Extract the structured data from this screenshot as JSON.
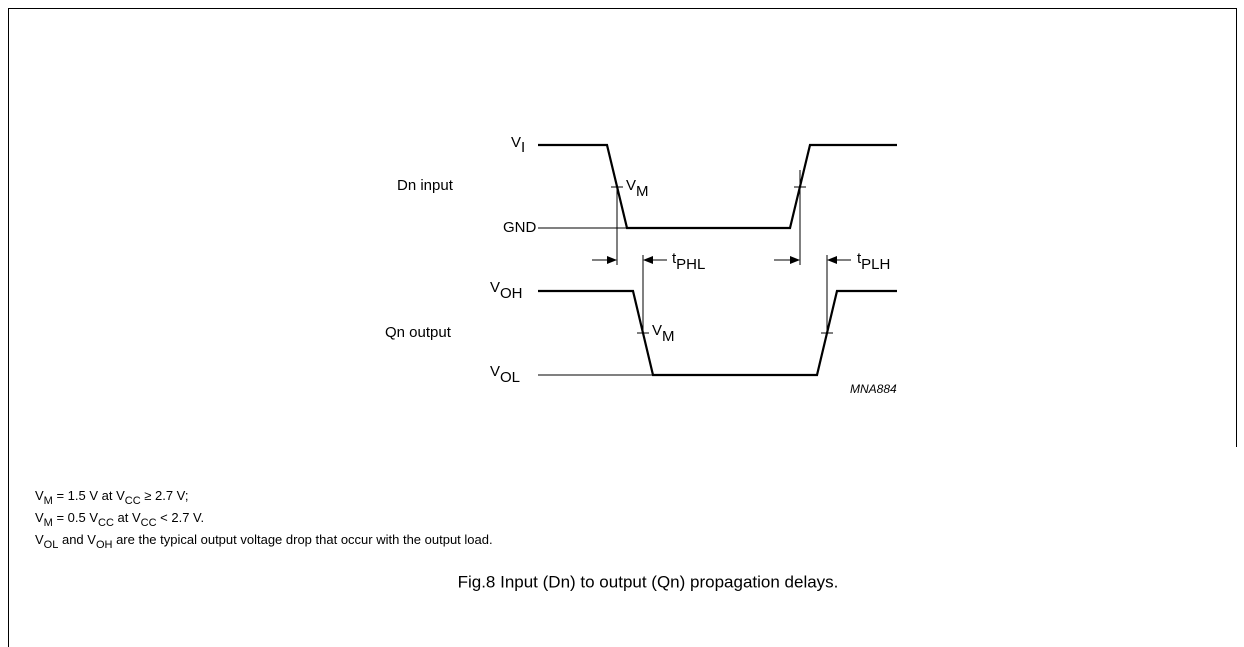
{
  "diagram": {
    "input_label": "Dn input",
    "output_label": "Qn output",
    "vi": {
      "main": "V",
      "sub": "I"
    },
    "gnd": "GND",
    "vm_in": {
      "main": "V",
      "sub": "M"
    },
    "voh": {
      "main": "V",
      "sub": "OH"
    },
    "vol": {
      "main": "V",
      "sub": "OL"
    },
    "vm_out": {
      "main": "V",
      "sub": "M"
    },
    "tphl": {
      "main": "t",
      "sub": "PHL"
    },
    "tplh": {
      "main": "t",
      "sub": "PLH"
    },
    "code": "MNA884"
  },
  "notes": [
    [
      {
        "text": "V"
      },
      {
        "sub": "M"
      },
      {
        "text": " = 1.5 V at V"
      },
      {
        "sub": "CC"
      },
      {
        "text": " ≥ 2.7 V;"
      }
    ],
    [
      {
        "text": "V"
      },
      {
        "sub": "M"
      },
      {
        "text": " = 0.5 V"
      },
      {
        "sub": "CC"
      },
      {
        "text": " at V"
      },
      {
        "sub": "CC"
      },
      {
        "text": " < 2.7 V."
      }
    ],
    [
      {
        "text": "V"
      },
      {
        "sub": "OL"
      },
      {
        "text": " and V"
      },
      {
        "sub": "OH"
      },
      {
        "text": " are the typical output voltage drop that occur with the output load."
      }
    ]
  ],
  "caption": "Fig.8  Input (Dn) to output (Qn) propagation delays."
}
